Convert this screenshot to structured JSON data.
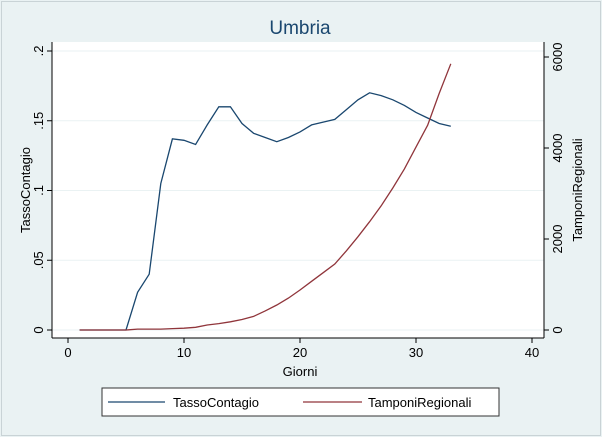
{
  "chart_data": {
    "type": "line",
    "title": "Umbria",
    "xlabel": "Giorni",
    "ylabel_left": "TassoContagio",
    "ylabel_right": "TamponiRegionali",
    "xlim": [
      0,
      40
    ],
    "ylim_left": [
      0,
      0.2
    ],
    "ylim_right": [
      0,
      6000
    ],
    "x_ticks": [
      "0",
      "10",
      "20",
      "30",
      "40"
    ],
    "y_left_ticks": [
      "0",
      ".05",
      ".1",
      ".15",
      ".2"
    ],
    "y_right_ticks": [
      "0",
      "2000",
      "4000",
      "6000"
    ],
    "grid": true,
    "legend_position": "bottom",
    "series": [
      {
        "name": "TassoContagio",
        "axis": "left",
        "color": "#1a476f",
        "x": [
          1,
          2,
          3,
          4,
          5,
          6,
          7,
          8,
          9,
          10,
          11,
          12,
          13,
          14,
          15,
          16,
          17,
          18,
          19,
          20,
          21,
          22,
          23,
          24,
          25,
          26,
          27,
          28,
          29,
          30,
          31,
          32,
          33
        ],
        "y": [
          0,
          0,
          0,
          0,
          0,
          0.027,
          0.04,
          0.105,
          0.137,
          0.136,
          0.133,
          0.147,
          0.16,
          0.16,
          0.148,
          0.141,
          0.138,
          0.135,
          0.138,
          0.142,
          0.147,
          0.149,
          0.151,
          0.158,
          0.165,
          0.17,
          0.168,
          0.165,
          0.161,
          0.156,
          0.152,
          0.148,
          0.146
        ]
      },
      {
        "name": "TamponiRegionali",
        "axis": "right",
        "color": "#90353b",
        "x": [
          1,
          2,
          3,
          4,
          5,
          6,
          7,
          8,
          9,
          10,
          11,
          12,
          13,
          14,
          15,
          16,
          17,
          18,
          19,
          20,
          21,
          22,
          23,
          24,
          25,
          26,
          27,
          28,
          29,
          30,
          31,
          32,
          33
        ],
        "y": [
          0,
          0,
          0,
          0,
          0,
          20,
          20,
          20,
          30,
          40,
          60,
          110,
          140,
          180,
          230,
          300,
          420,
          550,
          700,
          880,
          1070,
          1260,
          1450,
          1740,
          2050,
          2380,
          2730,
          3120,
          3540,
          4020,
          4500,
          5200,
          5850
        ]
      }
    ]
  }
}
